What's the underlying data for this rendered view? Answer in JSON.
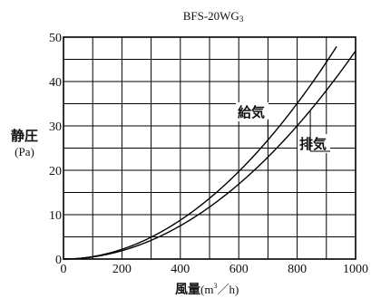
{
  "chart_data": {
    "type": "line",
    "title": "BFS-20WG",
    "title_subscript": "3",
    "xlabel": "風量",
    "xlabel_unit": {
      "open": "(m",
      "sup": "3",
      "rest": "／h)"
    },
    "ylabel_main": "静圧",
    "ylabel_unit": "(Pa)",
    "xlim": [
      0,
      1000
    ],
    "ylim": [
      0,
      50
    ],
    "x_ticks": [
      0,
      200,
      400,
      600,
      800,
      1000
    ],
    "x_tick_labels": [
      "0",
      "200",
      "400",
      "600",
      "800",
      "1000"
    ],
    "x_grid_step": 100,
    "y_ticks": [
      0,
      10,
      20,
      30,
      40,
      50
    ],
    "y_tick_labels": [
      "0",
      "10",
      "20",
      "30",
      "40",
      "50"
    ],
    "y_grid_step": 5,
    "grid": true,
    "series": [
      {
        "name": "給気",
        "x": [
          0,
          100,
          200,
          300,
          400,
          500,
          600,
          700,
          800,
          900,
          935
        ],
        "y": [
          0,
          0.6,
          2.2,
          4.9,
          8.8,
          13.7,
          19.7,
          26.8,
          35.0,
          44.3,
          48.0
        ]
      },
      {
        "name": "排気",
        "x": [
          0,
          100,
          200,
          300,
          400,
          500,
          600,
          700,
          800,
          900,
          1000
        ],
        "y": [
          0,
          0.5,
          1.9,
          4.2,
          7.5,
          11.7,
          16.9,
          23.0,
          30.0,
          38.0,
          46.9
        ]
      }
    ]
  }
}
